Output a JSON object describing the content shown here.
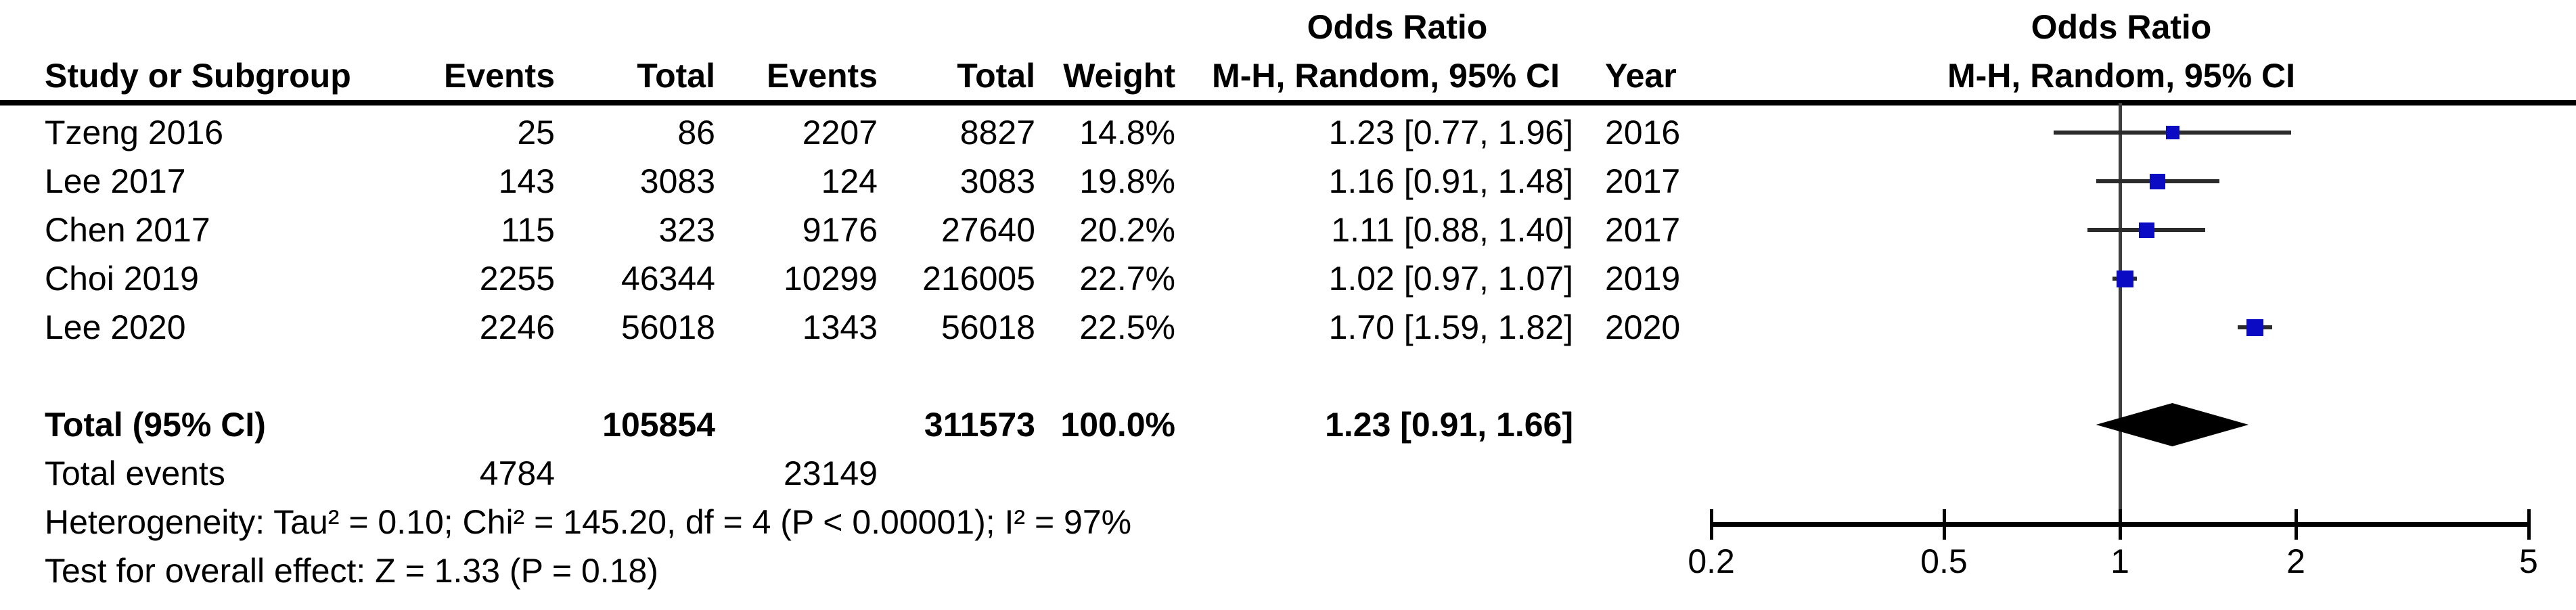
{
  "header": {
    "or_left": "Odds Ratio",
    "method_left": "M-H, Random, 95% CI",
    "or_right": "Odds Ratio",
    "method_right": "M-H, Random, 95% CI",
    "study": "Study or Subgroup",
    "events1": "Events",
    "total1": "Total",
    "events2": "Events",
    "total2": "Total",
    "weight": "Weight",
    "year": "Year"
  },
  "totals": {
    "label": "Total (95% CI)",
    "total1": "105854",
    "total2": "311573",
    "weight": "100.0%",
    "ci_text": "1.23 [0.91, 1.66]",
    "events_label": "Total events",
    "events1": "4784",
    "events2": "23149"
  },
  "footer": {
    "heterogeneity": "Heterogeneity: Tau² = 0.10; Chi² = 145.20, df = 4 (P < 0.00001); I² = 97%",
    "overall_effect": "Test for overall effect: Z = 1.33 (P = 0.18)"
  },
  "chart_data": {
    "type": "forest",
    "effect_measure": "Odds Ratio",
    "method": "M-H, Random, 95% CI",
    "x_scale": "log",
    "x_ticks": [
      0.2,
      0.5,
      1,
      2,
      5
    ],
    "x_range": [
      0.2,
      5
    ],
    "marker_color": "#0b0bc4",
    "studies": [
      {
        "label": "Tzeng 2016",
        "events1": "25",
        "total1": "86",
        "events2": "2207",
        "total2": "8827",
        "weight": "14.8%",
        "weight_pct": 14.8,
        "ci_text": "1.23 [0.77, 1.96]",
        "year": "2016",
        "or": 1.23,
        "low": 0.77,
        "high": 1.96
      },
      {
        "label": "Lee 2017",
        "events1": "143",
        "total1": "3083",
        "events2": "124",
        "total2": "3083",
        "weight": "19.8%",
        "weight_pct": 19.8,
        "ci_text": "1.16 [0.91, 1.48]",
        "year": "2017",
        "or": 1.16,
        "low": 0.91,
        "high": 1.48
      },
      {
        "label": "Chen 2017",
        "events1": "115",
        "total1": "323",
        "events2": "9176",
        "total2": "27640",
        "weight": "20.2%",
        "weight_pct": 20.2,
        "ci_text": "1.11 [0.88, 1.40]",
        "year": "2017",
        "or": 1.11,
        "low": 0.88,
        "high": 1.4
      },
      {
        "label": "Choi 2019",
        "events1": "2255",
        "total1": "46344",
        "events2": "10299",
        "total2": "216005",
        "weight": "22.7%",
        "weight_pct": 22.7,
        "ci_text": "1.02 [0.97, 1.07]",
        "year": "2019",
        "or": 1.02,
        "low": 0.97,
        "high": 1.07
      },
      {
        "label": "Lee 2020",
        "events1": "2246",
        "total1": "56018",
        "events2": "1343",
        "total2": "56018",
        "weight": "22.5%",
        "weight_pct": 22.5,
        "ci_text": "1.70 [1.59, 1.82]",
        "year": "2020",
        "or": 1.7,
        "low": 1.59,
        "high": 1.82
      }
    ],
    "total_diamond": {
      "or": 1.23,
      "low": 0.91,
      "high": 1.66
    }
  }
}
